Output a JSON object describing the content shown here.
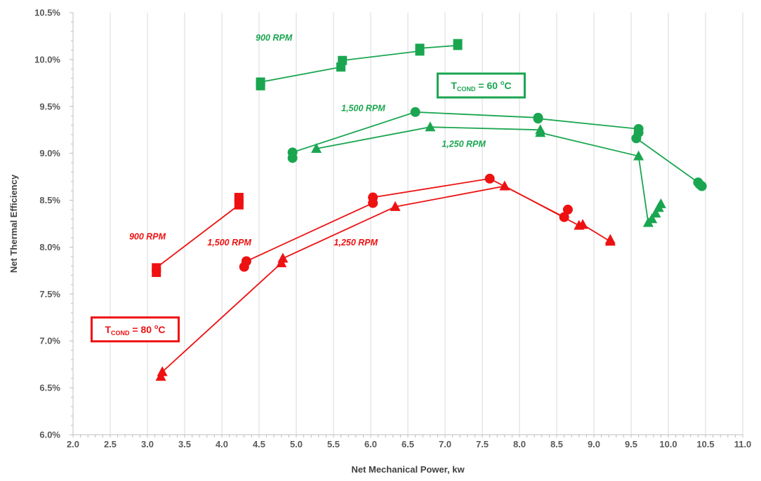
{
  "chart_data": {
    "type": "scatter",
    "xlabel": "Net Mechanical Power, kw",
    "ylabel": "Net Thermal Efficiency",
    "xlim": [
      2.0,
      11.0
    ],
    "ylim": [
      6.0,
      10.5
    ],
    "x_ticks": [
      "2.0",
      "2.5",
      "3.0",
      "3.5",
      "4.0",
      "4.5",
      "5.0",
      "5.5",
      "6.0",
      "6.5",
      "7.0",
      "7.5",
      "8.0",
      "8.5",
      "9.0",
      "9.5",
      "10.0",
      "10.5",
      "11.0"
    ],
    "y_ticks": [
      "6.0%",
      "6.5%",
      "7.0%",
      "7.5%",
      "8.0%",
      "8.5%",
      "9.0%",
      "9.5%",
      "10.0%",
      "10.5%"
    ],
    "grid": "vertical",
    "colors": {
      "green": "#1aa650",
      "red": "#ee1111"
    },
    "boxes": [
      {
        "name": "tcond-60",
        "prefix": "T",
        "sub": "COND",
        "mid": " = 60 ",
        "sup": "o",
        "suffix": "C",
        "color": "#1aa650"
      },
      {
        "name": "tcond-80",
        "prefix": "T",
        "sub": "COND",
        "mid": " = 80 ",
        "sup": "o",
        "suffix": "C",
        "color": "#ee1111"
      }
    ],
    "series": [
      {
        "label": "900 RPM",
        "group": "60C",
        "color": "#1aa650",
        "marker": "square",
        "points": [
          [
            4.52,
            9.72
          ],
          [
            4.52,
            9.76
          ],
          [
            5.6,
            9.92
          ],
          [
            5.62,
            9.99
          ],
          [
            6.66,
            10.09
          ],
          [
            6.66,
            10.12
          ],
          [
            7.17,
            10.15
          ],
          [
            7.17,
            10.17
          ]
        ]
      },
      {
        "label": "1,500 RPM",
        "group": "60C",
        "color": "#1aa650",
        "marker": "circle",
        "points": [
          [
            4.95,
            8.95
          ],
          [
            4.95,
            9.01
          ],
          [
            6.6,
            9.44
          ],
          [
            8.25,
            9.38
          ],
          [
            8.25,
            9.37
          ],
          [
            9.6,
            9.26
          ],
          [
            9.6,
            9.22
          ],
          [
            9.57,
            9.16
          ],
          [
            10.4,
            8.69
          ],
          [
            10.42,
            8.67
          ],
          [
            10.45,
            8.65
          ]
        ]
      },
      {
        "label": "1,250 RPM",
        "group": "60C",
        "color": "#1aa650",
        "marker": "triangle",
        "points": [
          [
            5.27,
            9.05
          ],
          [
            6.8,
            9.28
          ],
          [
            8.28,
            9.25
          ],
          [
            8.28,
            9.22
          ],
          [
            9.6,
            8.97
          ],
          [
            9.73,
            8.26
          ],
          [
            9.78,
            8.3
          ],
          [
            9.83,
            8.36
          ],
          [
            9.87,
            8.42
          ],
          [
            9.9,
            8.46
          ]
        ]
      },
      {
        "label": "900 RPM",
        "group": "80C",
        "color": "#ee1111",
        "marker": "square",
        "points": [
          [
            3.12,
            7.73
          ],
          [
            3.12,
            7.78
          ],
          [
            4.23,
            8.45
          ],
          [
            4.23,
            8.5
          ],
          [
            4.23,
            8.53
          ]
        ]
      },
      {
        "label": "1,500 RPM",
        "group": "80C",
        "color": "#ee1111",
        "marker": "circle",
        "points": [
          [
            4.3,
            7.79
          ],
          [
            4.33,
            7.85
          ],
          [
            6.03,
            8.47
          ],
          [
            6.03,
            8.53
          ],
          [
            7.6,
            8.73
          ],
          [
            8.6,
            8.32
          ],
          [
            8.65,
            8.4
          ]
        ]
      },
      {
        "label": "1,250 RPM",
        "group": "80C",
        "color": "#ee1111",
        "marker": "triangle",
        "points": [
          [
            3.18,
            6.62
          ],
          [
            3.2,
            6.67
          ],
          [
            4.8,
            7.83
          ],
          [
            4.82,
            7.88
          ],
          [
            6.33,
            8.43
          ],
          [
            7.8,
            8.65
          ],
          [
            8.8,
            8.23
          ],
          [
            8.85,
            8.24
          ],
          [
            9.22,
            8.06
          ],
          [
            9.22,
            8.08
          ]
        ]
      }
    ]
  }
}
